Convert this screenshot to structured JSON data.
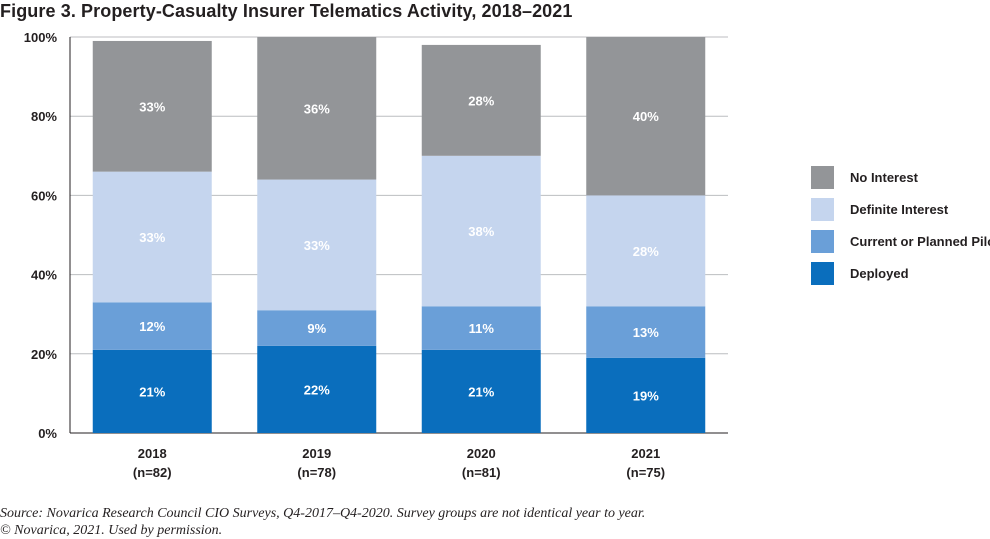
{
  "title": "Figure 3. Property-Casualty Insurer Telematics Activity, 2018–2021",
  "source_line1": "Source: Novarica Research Council CIO Surveys, Q4-2017–Q4-2020. Survey groups are not identical year to year.",
  "source_line2": "© Novarica, 2021. Used by permission.",
  "chart_data": {
    "type": "bar",
    "stacked": true,
    "categories": [
      "2018",
      "2019",
      "2020",
      "2021"
    ],
    "category_sublabels": [
      "(n=82)",
      "(n=78)",
      "(n=81)",
      "(n=75)"
    ],
    "y_ticks": [
      "0%",
      "20%",
      "40%",
      "60%",
      "80%",
      "100%"
    ],
    "ylim": [
      0,
      100
    ],
    "legend_position": "right",
    "series": [
      {
        "name": "Deployed",
        "color": "#0a6ebd",
        "values": [
          21,
          22,
          21,
          19
        ],
        "labels": [
          "21%",
          "22%",
          "21%",
          "19%"
        ]
      },
      {
        "name": "Current or Planned Pilot",
        "color": "#6a9fd8",
        "values": [
          12,
          9,
          11,
          13
        ],
        "labels": [
          "12%",
          "9%",
          "11%",
          "13%"
        ]
      },
      {
        "name": "Definite Interest",
        "color": "#c5d5ee",
        "values": [
          33,
          33,
          38,
          28
        ],
        "labels": [
          "33%",
          "33%",
          "38%",
          "28%"
        ]
      },
      {
        "name": "No Interest",
        "color": "#939598",
        "values": [
          33,
          36,
          28,
          40
        ],
        "labels": [
          "33%",
          "36%",
          "28%",
          "40%"
        ]
      }
    ],
    "grid": true
  }
}
